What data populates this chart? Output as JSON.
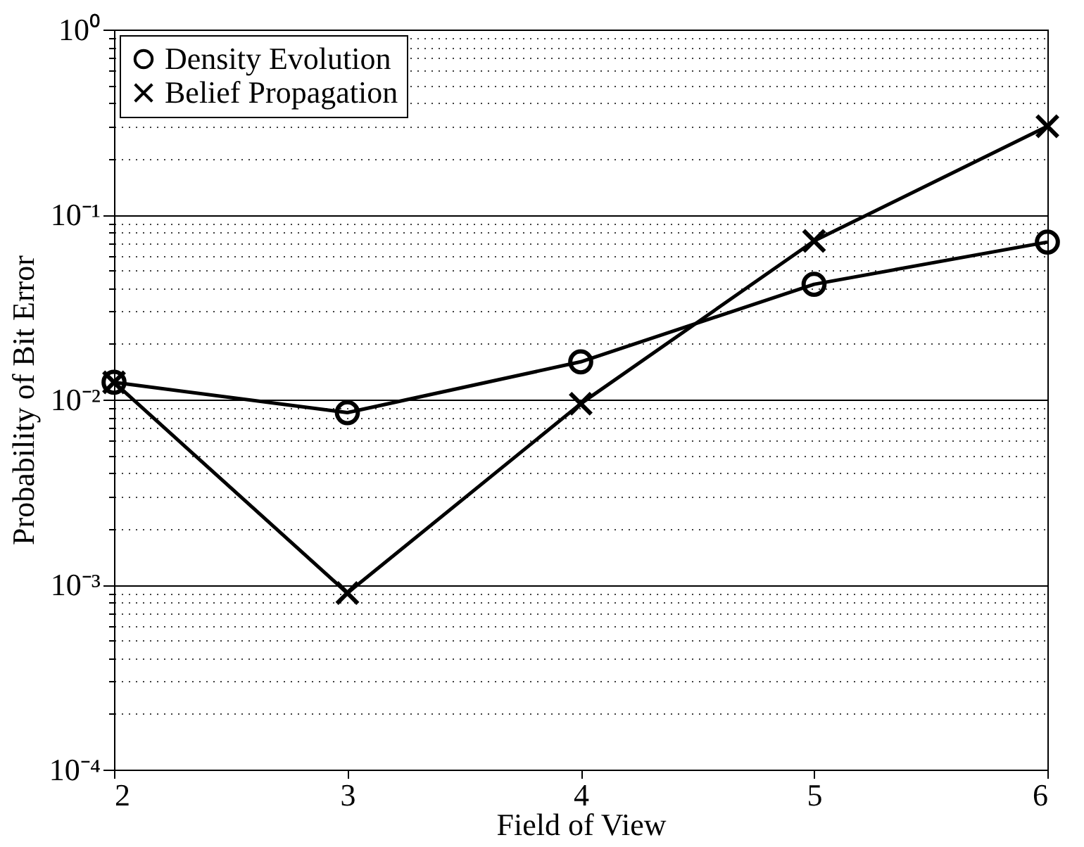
{
  "chart_data": {
    "type": "line",
    "xlabel": "Field of View",
    "ylabel": "Probability of Bit Error",
    "x": [
      2,
      3,
      4,
      5,
      6
    ],
    "series": [
      {
        "name": "Density Evolution",
        "color": "#000000",
        "marker": "circle",
        "values": [
          0.0124,
          0.0085,
          0.016,
          0.042,
          0.071
        ]
      },
      {
        "name": "Belief Propagation",
        "color": "#000000",
        "marker": "cross",
        "values": [
          0.0124,
          0.0009,
          0.0095,
          0.072,
          0.3
        ]
      }
    ],
    "xlim": [
      2,
      6
    ],
    "xticks": [
      2,
      3,
      4,
      5,
      6
    ],
    "ylim": [
      0.0001,
      1
    ],
    "log": true,
    "yticks": [
      {
        "value": 0.0001,
        "label": "10⁻⁴"
      },
      {
        "value": 0.0002,
        "label": null
      },
      {
        "value": 0.0003,
        "label": null
      },
      {
        "value": 0.0004,
        "label": null
      },
      {
        "value": 0.0005,
        "label": null
      },
      {
        "value": 0.0006,
        "label": null
      },
      {
        "value": 0.0007,
        "label": null
      },
      {
        "value": 0.0008,
        "label": null
      },
      {
        "value": 0.0009,
        "label": null
      },
      {
        "value": 0.001,
        "label": "10⁻³"
      },
      {
        "value": 0.002,
        "label": null
      },
      {
        "value": 0.003,
        "label": null
      },
      {
        "value": 0.004,
        "label": null
      },
      {
        "value": 0.005,
        "label": null
      },
      {
        "value": 0.006,
        "label": null
      },
      {
        "value": 0.007,
        "label": null
      },
      {
        "value": 0.008,
        "label": null
      },
      {
        "value": 0.009,
        "label": null
      },
      {
        "value": 0.01,
        "label": "10⁻²"
      },
      {
        "value": 0.02,
        "label": null
      },
      {
        "value": 0.03,
        "label": null
      },
      {
        "value": 0.04,
        "label": null
      },
      {
        "value": 0.05,
        "label": null
      },
      {
        "value": 0.06,
        "label": null
      },
      {
        "value": 0.07,
        "label": null
      },
      {
        "value": 0.08,
        "label": null
      },
      {
        "value": 0.09,
        "label": null
      },
      {
        "value": 0.1,
        "label": "10⁻¹"
      },
      {
        "value": 0.2,
        "label": null
      },
      {
        "value": 0.3,
        "label": null
      },
      {
        "value": 0.4,
        "label": null
      },
      {
        "value": 0.5,
        "label": null
      },
      {
        "value": 0.6,
        "label": null
      },
      {
        "value": 0.7,
        "label": null
      },
      {
        "value": 0.8,
        "label": null
      },
      {
        "value": 0.9,
        "label": null
      },
      {
        "value": 1,
        "label": "10⁰"
      }
    ],
    "grid": "y",
    "legend": "top left",
    "line_style": "solid"
  }
}
